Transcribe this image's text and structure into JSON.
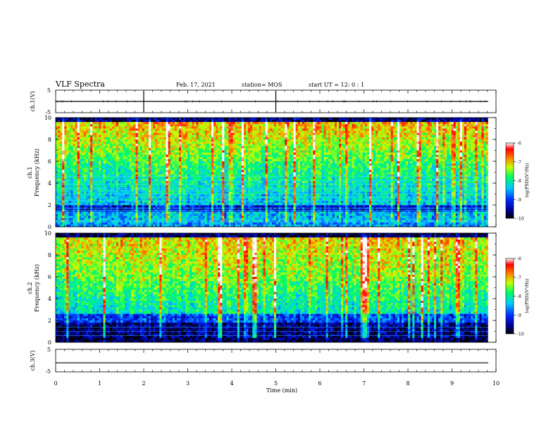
{
  "header": {
    "title": "VLF Spectra",
    "date": "Feb. 17, 2021",
    "station": "station= MOS",
    "start": "start  UT =   12: 0  : 1"
  },
  "chart_data": [
    {
      "id": "ch1v",
      "type": "line",
      "ylabel": "ch.1(V)",
      "ylim": [
        -5,
        5
      ],
      "yticks": [
        "5",
        "-5"
      ],
      "value": 0,
      "xlim": [
        0,
        10
      ]
    },
    {
      "id": "ch1",
      "type": "heatmap",
      "ylabel_line1": "ch.1",
      "ylabel_line2": "Frequency (kHz)",
      "ylim": [
        0,
        10
      ],
      "yticks": [
        "0",
        "2",
        "4",
        "6",
        "8",
        "10"
      ],
      "xlim": [
        0,
        10
      ],
      "data_end_min": 9.82,
      "colorbar": {
        "label": "log(PSD)(V²/Hz)",
        "ticks": [
          "-6",
          "-7",
          "-8",
          "-9",
          "-10"
        ],
        "range": [
          -10,
          -6
        ]
      }
    },
    {
      "id": "ch2",
      "type": "heatmap",
      "ylabel_line1": "ch.2",
      "ylabel_line2": "Frequency (kHz)",
      "ylim": [
        0,
        10
      ],
      "yticks": [
        "0",
        "2",
        "4",
        "6",
        "8",
        "10"
      ],
      "xlim": [
        0,
        10
      ],
      "data_end_min": 9.82,
      "colorbar": {
        "label": "log(PSD)(V²/Hz)",
        "ticks": [
          "-6",
          "-7",
          "-8",
          "-9",
          "-10"
        ],
        "range": [
          -10,
          -6
        ]
      }
    },
    {
      "id": "ch3v",
      "type": "line",
      "ylabel": "ch.3(V)",
      "ylim": [
        -5,
        5
      ],
      "yticks": [
        "5",
        "-5"
      ],
      "value": -1,
      "xlim": [
        0,
        10
      ]
    }
  ],
  "xaxis": {
    "label": "Time (min)",
    "ticks": [
      "0",
      "1",
      "2",
      "3",
      "4",
      "5",
      "6",
      "7",
      "8",
      "9",
      "10"
    ]
  }
}
